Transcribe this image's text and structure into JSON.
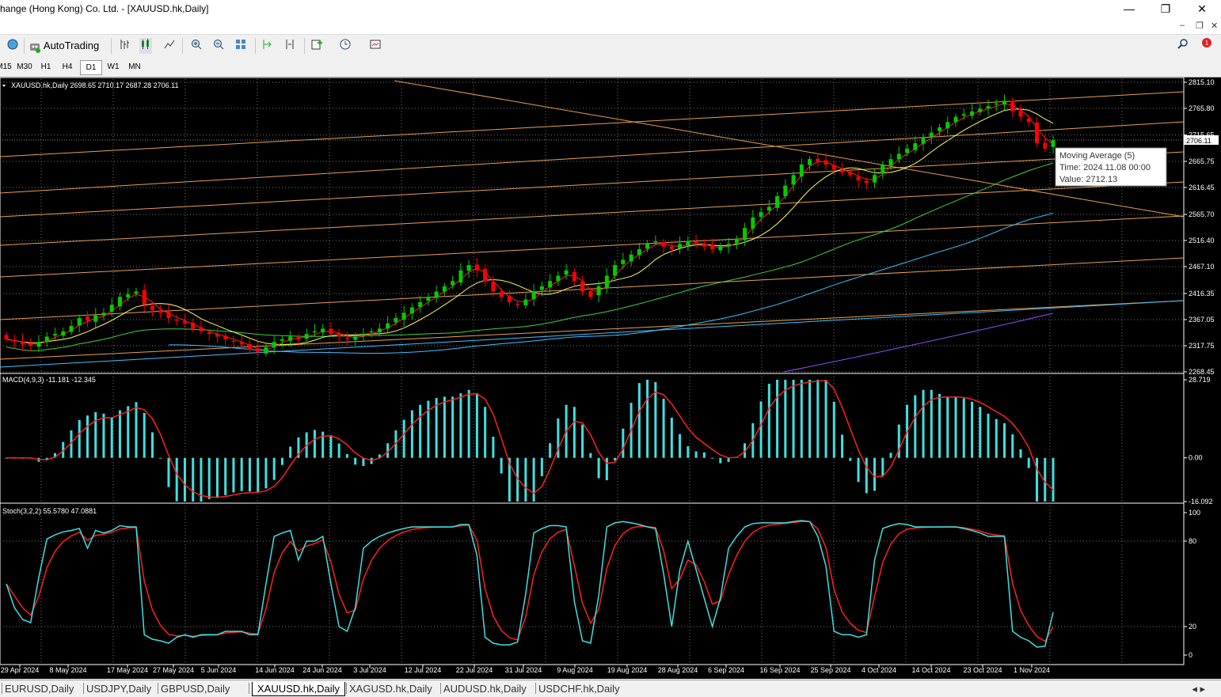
{
  "window": {
    "title": "hange (Hong Kong) Co. Ltd. - [XAUUSD.hk,Daily]",
    "minimize": "—",
    "maximize": "❐",
    "close": "✕"
  },
  "toolbar": {
    "autotrading_label": "AutoTrading"
  },
  "timeframes": [
    "M15",
    "M30",
    "H1",
    "H4",
    "D1",
    "W1",
    "MN"
  ],
  "active_timeframe": "D1",
  "price_panel": {
    "header": "XAUUSD.hk,Daily  2698.65 2710.17 2687.28 2706.11",
    "current_price": "2706.11",
    "y_ticks": [
      "2815.10",
      "2765.80",
      "2715.65",
      "2665.75",
      "2616.45",
      "2565.70",
      "2516.40",
      "2467.10",
      "2416.35",
      "2367.05",
      "2317.75",
      "2268.45"
    ]
  },
  "tooltip": {
    "line1": "Moving Average (5)",
    "line2": "Time: 2024.11.08 00:00",
    "line3": "Value: 2712.13"
  },
  "macd_panel": {
    "header": "MACD(4,9,3) -11.181 -12.345",
    "y_ticks": [
      "28.719",
      "0.00",
      "-16.092"
    ]
  },
  "stoch_panel": {
    "header": "Stoch(3,2,2) 55.5780 47.0881",
    "y_ticks": [
      "100",
      "80",
      "20",
      "0"
    ]
  },
  "x_axis_labels": [
    "29 Apr 2024",
    "8 May 2024",
    "17 May 2024",
    "27 May 2024",
    "5 Jun 2024",
    "14 Jun 2024",
    "24 Jun 2024",
    "3 Jul 2024",
    "12 Jul 2024",
    "22 Jul 2024",
    "31 Jul 2024",
    "9 Aug 2024",
    "19 Aug 2024",
    "28 Aug 2024",
    "6 Sep 2024",
    "16 Sep 2024",
    "25 Sep 2024",
    "4 Oct 2024",
    "14 Oct 2024",
    "23 Oct 2024",
    "1 Nov 2024"
  ],
  "tabs": [
    "EURUSD,Daily",
    "USDJPY,Daily",
    "GBPUSD,Daily",
    "XAUUSD.hk,Daily",
    "XAGUSD.hk,Daily",
    "AUDUSD.hk,Daily",
    "USDCHF.hk,Daily"
  ],
  "active_tab": "XAUUSD.hk,Daily",
  "colors": {
    "bull": "#00cc00",
    "bear": "#ff0000",
    "ma_fast": "#ff2020",
    "ma_yellow": "#ffff60",
    "ma_green": "#40d040",
    "ma_cyan": "#40c0ff",
    "ma_purple": "#9050ff",
    "macd_hist": "#40e0e0",
    "trendline": "#e8a050"
  },
  "chart_data": {
    "type": "candlestick",
    "symbol": "XAUUSD.hk",
    "timeframe": "Daily",
    "ohlc_last": {
      "open": 2698.65,
      "high": 2710.17,
      "low": 2687.28,
      "close": 2706.11
    },
    "ylim": [
      2268.45,
      2815.1
    ],
    "close_path": [
      2330,
      2325,
      2320,
      2318,
      2325,
      2335,
      2340,
      2345,
      2355,
      2370,
      2365,
      2375,
      2380,
      2395,
      2410,
      2415,
      2420,
      2395,
      2385,
      2380,
      2370,
      2365,
      2360,
      2350,
      2345,
      2340,
      2335,
      2330,
      2325,
      2320,
      2310,
      2305,
      2315,
      2325,
      2330,
      2335,
      2330,
      2340,
      2345,
      2350,
      2340,
      2335,
      2330,
      2335,
      2340,
      2345,
      2350,
      2360,
      2370,
      2380,
      2390,
      2400,
      2410,
      2420,
      2430,
      2440,
      2460,
      2470,
      2460,
      2440,
      2420,
      2410,
      2400,
      2395,
      2405,
      2420,
      2430,
      2440,
      2450,
      2460,
      2440,
      2420,
      2410,
      2430,
      2450,
      2470,
      2480,
      2490,
      2500,
      2510,
      2515,
      2505,
      2500,
      2510,
      2515,
      2510,
      2505,
      2500,
      2505,
      2510,
      2520,
      2540,
      2560,
      2570,
      2580,
      2600,
      2620,
      2640,
      2660,
      2670,
      2665,
      2660,
      2650,
      2645,
      2640,
      2630,
      2625,
      2640,
      2660,
      2670,
      2680,
      2690,
      2700,
      2710,
      2720,
      2730,
      2740,
      2750,
      2755,
      2760,
      2765,
      2770,
      2775,
      2780,
      2760,
      2750,
      2740,
      2700,
      2690,
      2706
    ],
    "macd_ylim": [
      -16.092,
      28.719
    ],
    "stoch_ylim": [
      0,
      100
    ]
  }
}
